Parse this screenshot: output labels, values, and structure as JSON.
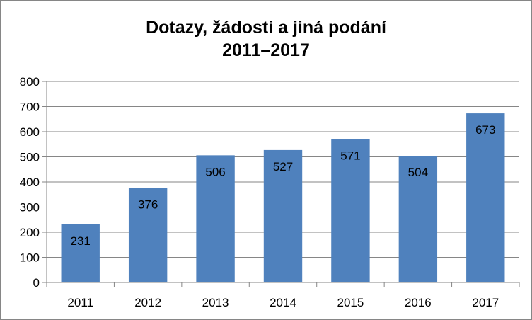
{
  "chart_data": {
    "type": "bar",
    "title": "Dotazy, žádosti a jiná podání",
    "subtitle": "2011–2017",
    "categories": [
      "2011",
      "2012",
      "2013",
      "2014",
      "2015",
      "2016",
      "2017"
    ],
    "values": [
      231,
      376,
      506,
      527,
      571,
      504,
      673
    ],
    "data_labels": [
      "231",
      "376",
      "506",
      "527",
      "571",
      "504",
      "673"
    ],
    "ylim": [
      0,
      800
    ],
    "yticks": [
      0,
      100,
      200,
      300,
      400,
      500,
      600,
      700,
      800
    ],
    "ytick_labels": [
      "0",
      "100",
      "200",
      "300",
      "400",
      "500",
      "600",
      "700",
      "800"
    ],
    "xlabel": "",
    "ylabel": "",
    "grid": true,
    "legend": "none",
    "colors": {
      "bar": "#4f81bd",
      "grid": "#868686",
      "axis": "#868686",
      "border": "#868686",
      "text": "#000000"
    }
  }
}
